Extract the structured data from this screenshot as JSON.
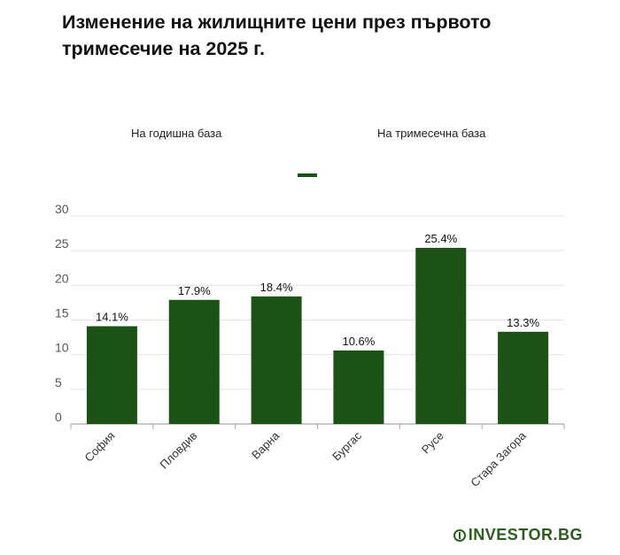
{
  "title": "Изменение на жилищните цени през първото тримесечие на 2025 г.",
  "tabs": {
    "annual": "На годишна база",
    "quarterly": "На тримесечна база"
  },
  "logo_text": "INVESTOR.BG",
  "colors": {
    "bar": "#1d5216",
    "grid": "#e4e4e4",
    "axis": "#aaaaaa",
    "logo": "#2b5d1c"
  },
  "chart_data": {
    "type": "bar",
    "categories": [
      "София",
      "Пловдив",
      "Варна",
      "Бургас",
      "Русе",
      "Стара Загора"
    ],
    "values": [
      14.1,
      17.9,
      18.4,
      10.6,
      25.4,
      13.3
    ],
    "value_labels": [
      "14.1%",
      "17.9%",
      "18.4%",
      "10.6%",
      "25.4%",
      "13.3%"
    ],
    "y_ticks": [
      0,
      5,
      10,
      15,
      20,
      25,
      30
    ],
    "ylim": [
      0,
      30
    ],
    "grid": true,
    "legend": "top-center"
  }
}
